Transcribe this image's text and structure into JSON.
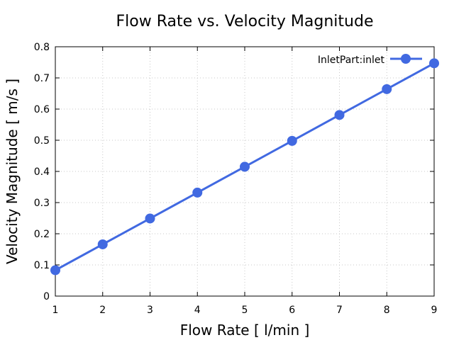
{
  "chart_data": {
    "type": "line",
    "title": "Flow Rate vs. Velocity Magnitude",
    "xlabel": "Flow Rate [ l/min ]",
    "ylabel": "Velocity Magnitude [ m/s ]",
    "xlim": [
      1,
      9
    ],
    "ylim": [
      0,
      0.8
    ],
    "xticks": [
      "1",
      "2",
      "3",
      "4",
      "5",
      "6",
      "7",
      "8",
      "9"
    ],
    "yticks": [
      "0",
      "0.1",
      "0.2",
      "0.3",
      "0.4",
      "0.5",
      "0.6",
      "0.7",
      "0.8"
    ],
    "grid": true,
    "legend_position": "top-right",
    "series": [
      {
        "name": "InletPart:inlet",
        "color": "#4169e1",
        "x": [
          1,
          2,
          3,
          4,
          5,
          6,
          7,
          8,
          9
        ],
        "values": [
          0.083,
          0.166,
          0.249,
          0.332,
          0.415,
          0.498,
          0.581,
          0.664,
          0.747
        ]
      }
    ]
  }
}
